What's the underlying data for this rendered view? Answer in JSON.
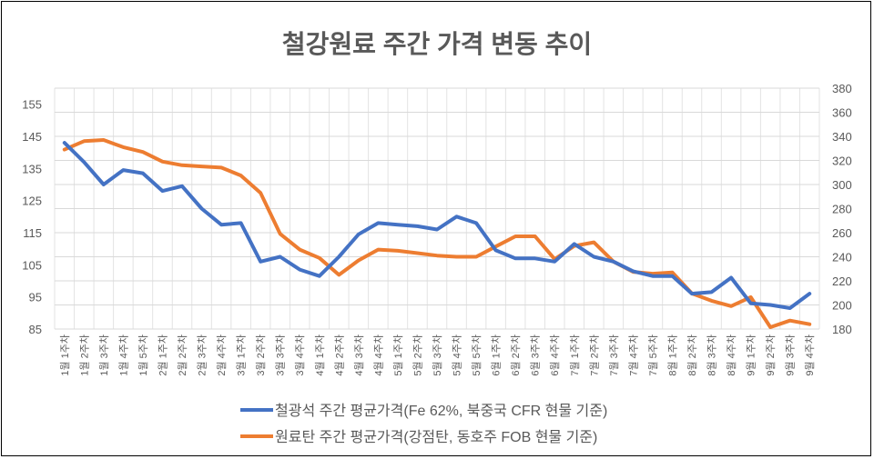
{
  "chart_data": {
    "type": "line",
    "title": "철강원료 주간 가격 변동 추이",
    "categories": [
      "1월 1주차",
      "1월 2주차",
      "1월 3주차",
      "1월 4주차",
      "1월 5주차",
      "2월 1주차",
      "2월 2주차",
      "2월 3주차",
      "2월 4주차",
      "3월 1주차",
      "3월 2주차",
      "3월 3주차",
      "3월 4주차",
      "4월 1주차",
      "4월 2주차",
      "4월 3주차",
      "4월 4주차",
      "5월 1주차",
      "5월 2주차",
      "5월 3주차",
      "5월 4주차",
      "5월 5주차",
      "6월 1주차",
      "6월 2주차",
      "6월 3주차",
      "6월 4주차",
      "7월 1주차",
      "7월 2주차",
      "7월 3주차",
      "7월 4주차",
      "7월 5주차",
      "8월 1주차",
      "8월 2주차",
      "8월 3주차",
      "8월 4주차",
      "9월 1주차",
      "9월 2주차",
      "9월 3주차",
      "9월 4주차"
    ],
    "left_axis": {
      "ylim": [
        85,
        160
      ],
      "ticks": [
        85,
        95,
        105,
        115,
        125,
        135,
        145,
        155
      ]
    },
    "right_axis": {
      "ylim": [
        180,
        380
      ],
      "ticks": [
        180,
        200,
        220,
        240,
        260,
        280,
        300,
        320,
        340,
        360,
        380
      ]
    },
    "grid": true,
    "legend_position": "bottom",
    "series": [
      {
        "name": "철광석 주간 평균가격(Fe 62%, 북중국 CFR 현물 기준)",
        "axis": "left",
        "color": "#4472C4",
        "values": [
          143,
          137,
          130,
          134.5,
          133.5,
          128,
          129.5,
          122.5,
          117.5,
          118,
          106,
          107.5,
          103.5,
          101.5,
          107.5,
          114.5,
          118,
          117.5,
          117,
          116,
          120,
          118,
          109.5,
          107,
          107,
          106,
          111.5,
          107.5,
          106,
          103,
          101.5,
          101.5,
          96,
          96.5,
          101,
          93,
          92.5,
          91.5,
          96
        ]
      },
      {
        "name": "원료탄 주간 평균가격(강점탄, 동호주 FOB 현물 기준)",
        "axis": "right",
        "color": "#ED7D31",
        "values": [
          329,
          336,
          337,
          331,
          327,
          319,
          316,
          315,
          314,
          307.5,
          293,
          259,
          246,
          239,
          225,
          237,
          246,
          245,
          243,
          241,
          240,
          240,
          248.5,
          257,
          257,
          238,
          249,
          252,
          236,
          227.5,
          226,
          227,
          209.5,
          203.5,
          199,
          206.5,
          181.5,
          187,
          184
        ]
      }
    ]
  }
}
